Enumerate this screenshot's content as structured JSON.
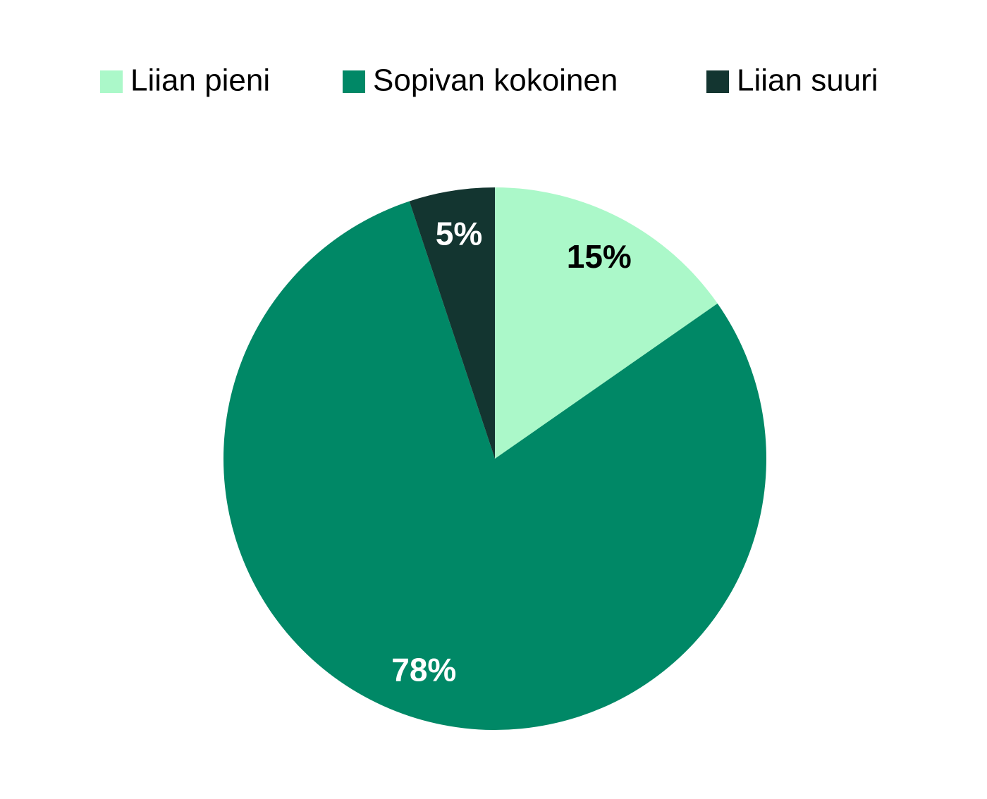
{
  "chart_data": {
    "type": "pie",
    "categories": [
      "Liian pieni",
      "Sopivan kokoinen",
      "Liian suuri"
    ],
    "values": [
      15,
      78,
      5
    ],
    "value_labels": [
      "15%",
      "78%",
      "5%"
    ],
    "colors": [
      "#abf8c9",
      "#008866",
      "#133530"
    ],
    "legend": "top"
  }
}
